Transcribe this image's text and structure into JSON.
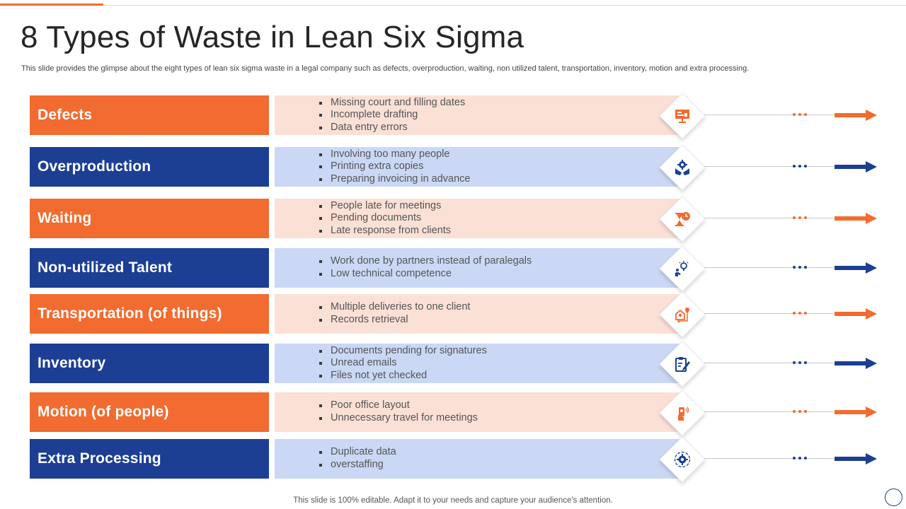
{
  "title": "8 Types of Waste in Lean Six Sigma",
  "subtitle": "This slide provides the glimpse about the eight types of lean six sigma waste in a legal company such as defects, overproduction, waiting, non utilized talent, transportation, inventory, motion and extra processing.",
  "colors": {
    "orange": "#f26b30",
    "blue": "#1c3f94",
    "light_orange": "#fbe0d6",
    "light_blue": "#cad8f6"
  },
  "rows": [
    {
      "label": "Defects",
      "theme": "orange",
      "icon": "monitor-presentation-icon",
      "bullets": [
        "Missing court and filling dates",
        "Incomplete drafting",
        "Data entry errors"
      ]
    },
    {
      "label": "Overproduction",
      "theme": "blue",
      "icon": "gear-in-hands-icon",
      "bullets": [
        "Involving  too many people",
        "Printing extra copies",
        "Preparing invoicing in advance"
      ]
    },
    {
      "label": "Waiting",
      "theme": "orange",
      "icon": "hourglass-clock-icon",
      "bullets": [
        "People late for meetings",
        "Pending documents",
        "Late response from clients"
      ]
    },
    {
      "label": "Non-utilized Talent",
      "theme": "blue",
      "icon": "person-lightbulb-icon",
      "bullets": [
        "Work done by partners instead of paralegals",
        "Low technical competence"
      ]
    },
    {
      "label": "Transportation (of things)",
      "theme": "orange",
      "icon": "delivery-location-icon",
      "bullets": [
        "Multiple  deliveries to one client",
        "Records retrieval"
      ]
    },
    {
      "label": "Inventory",
      "theme": "blue",
      "icon": "clipboard-pen-icon",
      "bullets": [
        "Documents pending for signatures",
        "Unread emails",
        "Files not yet checked"
      ]
    },
    {
      "label": "Motion (of people)",
      "theme": "orange",
      "icon": "hand-phone-icon",
      "bullets": [
        "Poor office layout",
        "Unnecessary travel for meetings"
      ]
    },
    {
      "label": "Extra Processing",
      "theme": "blue",
      "icon": "gear-cycle-icon",
      "bullets": [
        "Duplicate data",
        "overstaffing"
      ]
    }
  ],
  "footer": "This slide is 100% editable. Adapt it to your needs and capture your audience's attention."
}
